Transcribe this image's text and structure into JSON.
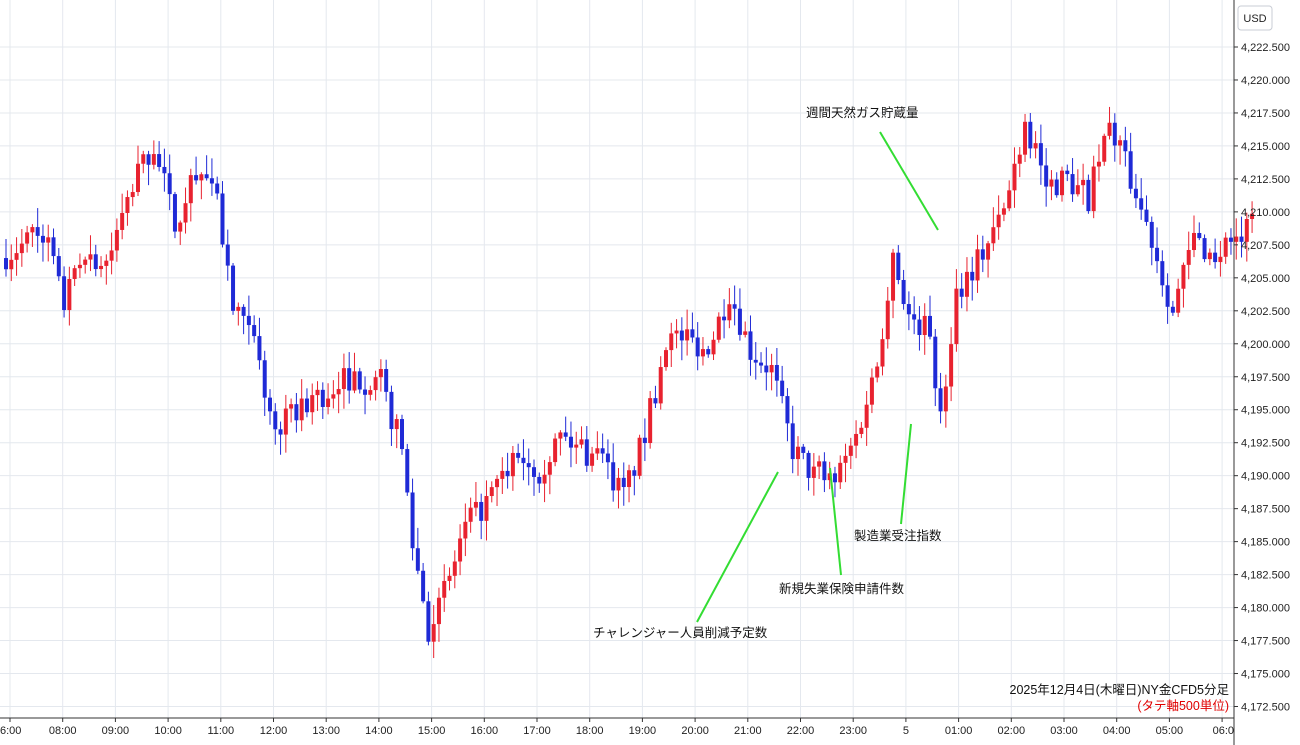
{
  "colors": {
    "up": "#e8222f",
    "down": "#1f2ad6",
    "grid": "#e4e8ee",
    "axis": "#333333",
    "annotation_line": "#33dd33",
    "background": "#ffffff",
    "note_red": "#e00000"
  },
  "chart_data": {
    "type": "candlestick",
    "title": "",
    "caption": "2025年12月4日(木曜日)NY金CFD5分足",
    "subcaption": "(タテ軸500単位)",
    "unit_label": "USD",
    "y_axis_position": "right",
    "ylim": [
      4172.5,
      4224.5
    ],
    "grid": true,
    "y_ticks": [
      "4,172.500",
      "4,175.000",
      "4,177.500",
      "4,180.000",
      "4,182.500",
      "4,185.000",
      "4,187.500",
      "4,190.000",
      "4,192.500",
      "4,195.000",
      "4,197.500",
      "4,200.000",
      "4,202.500",
      "4,205.000",
      "4,207.500",
      "4,210.000",
      "4,212.500",
      "4,215.000",
      "4,217.500",
      "4,220.000",
      "4,222.500"
    ],
    "x_ticks": [
      "6:00",
      "08:00",
      "09:00",
      "10:00",
      "11:00",
      "12:00",
      "13:00",
      "14:00",
      "15:00",
      "16:00",
      "17:00",
      "18:00",
      "19:00",
      "20:00",
      "21:00",
      "22:00",
      "23:00",
      "5",
      "01:00",
      "02:00",
      "03:00",
      "04:00",
      "05:00",
      "06:0"
    ],
    "anchors": [
      {
        "t": 0,
        "p": 4206.5
      },
      {
        "t": 8,
        "p": 4208.5
      },
      {
        "t": 12,
        "p": 4203
      },
      {
        "t": 16,
        "p": 4206.8
      },
      {
        "t": 20,
        "p": 4206
      },
      {
        "t": 26,
        "p": 4213
      },
      {
        "t": 29,
        "p": 4215
      },
      {
        "t": 33,
        "p": 4209
      },
      {
        "t": 37,
        "p": 4213.5
      },
      {
        "t": 41,
        "p": 4211
      },
      {
        "t": 44,
        "p": 4202.5
      },
      {
        "t": 48,
        "p": 4200
      },
      {
        "t": 52,
        "p": 4193
      },
      {
        "t": 56,
        "p": 4195
      },
      {
        "t": 62,
        "p": 4196.5
      },
      {
        "t": 66,
        "p": 4197.5
      },
      {
        "t": 72,
        "p": 4197
      },
      {
        "t": 76,
        "p": 4192
      },
      {
        "t": 78,
        "p": 4185
      },
      {
        "t": 81,
        "p": 4178.5
      },
      {
        "t": 84,
        "p": 4181
      },
      {
        "t": 88,
        "p": 4186
      },
      {
        "t": 93,
        "p": 4188.5
      },
      {
        "t": 98,
        "p": 4191.5
      },
      {
        "t": 102,
        "p": 4190.5
      },
      {
        "t": 106,
        "p": 4193
      },
      {
        "t": 110,
        "p": 4192
      },
      {
        "t": 114,
        "p": 4191
      },
      {
        "t": 118,
        "p": 4188.5
      },
      {
        "t": 122,
        "p": 4193
      },
      {
        "t": 126,
        "p": 4200.5
      },
      {
        "t": 130,
        "p": 4200.5
      },
      {
        "t": 134,
        "p": 4199.5
      },
      {
        "t": 138,
        "p": 4204
      },
      {
        "t": 142,
        "p": 4199.5
      },
      {
        "t": 146,
        "p": 4198
      },
      {
        "t": 150,
        "p": 4192
      },
      {
        "t": 154,
        "p": 4190
      },
      {
        "t": 158,
        "p": 4189.5
      },
      {
        "t": 162,
        "p": 4193
      },
      {
        "t": 166,
        "p": 4198.5
      },
      {
        "t": 169,
        "p": 4207
      },
      {
        "t": 172,
        "p": 4202
      },
      {
        "t": 176,
        "p": 4201
      },
      {
        "t": 178,
        "p": 4194
      },
      {
        "t": 181,
        "p": 4204
      },
      {
        "t": 186,
        "p": 4207
      },
      {
        "t": 190,
        "p": 4210
      },
      {
        "t": 194,
        "p": 4217
      },
      {
        "t": 198,
        "p": 4212
      },
      {
        "t": 202,
        "p": 4212.5
      },
      {
        "t": 206,
        "p": 4211
      },
      {
        "t": 210,
        "p": 4216.5
      },
      {
        "t": 214,
        "p": 4212.5
      },
      {
        "t": 218,
        "p": 4208
      },
      {
        "t": 222,
        "p": 4202.5
      },
      {
        "t": 226,
        "p": 4208
      },
      {
        "t": 230,
        "p": 4206.5
      },
      {
        "t": 234,
        "p": 4208
      },
      {
        "t": 236,
        "p": 4208.5
      }
    ]
  },
  "annotations": [
    {
      "text": "週間天然ガス貯蔵量"
    },
    {
      "text": "製造業受注指数"
    },
    {
      "text": "新規失業保険申請件数"
    },
    {
      "text": "チャレンジャー人員削減予定数"
    }
  ]
}
